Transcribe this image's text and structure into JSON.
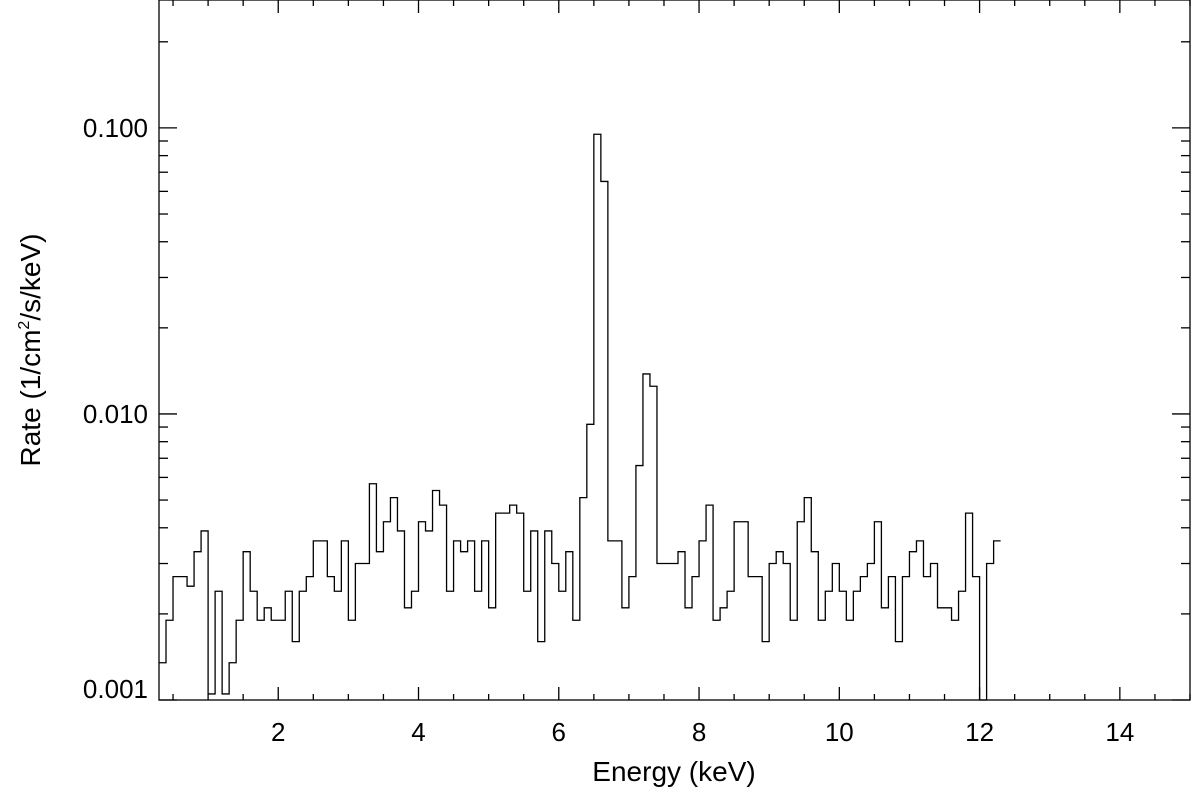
{
  "chart_data": {
    "type": "line",
    "style": "step-histogram",
    "xlabel": "Energy (keV)",
    "ylabel": {
      "prefix": "Rate (1/cm",
      "superscript": "2",
      "suffix": "/s/keV)"
    },
    "xlim": [
      0.3,
      15.0
    ],
    "ylim": [
      0.001,
      0.28
    ],
    "yscale": "log",
    "grid": false,
    "legend": "none",
    "x_ticks": [
      2,
      4,
      6,
      8,
      10,
      12,
      14
    ],
    "x_tick_labels": [
      "2",
      "4",
      "6",
      "8",
      "10",
      "12",
      "14"
    ],
    "y_ticks": [
      0.001,
      0.01,
      0.1
    ],
    "y_tick_labels": [
      "0.001",
      "0.010",
      "0.100"
    ],
    "bin_width": 0.1,
    "bin_start": 0.3,
    "series": [
      {
        "values": [
          0.00135,
          0.0019,
          0.0027,
          0.0027,
          0.0025,
          0.0033,
          0.0039,
          0.00105,
          0.0024,
          0.00105,
          0.00135,
          0.0019,
          0.0033,
          0.0024,
          0.0019,
          0.0021,
          0.0019,
          0.0019,
          0.0024,
          0.0016,
          0.0024,
          0.0027,
          0.0036,
          0.0036,
          0.0027,
          0.0024,
          0.0036,
          0.0019,
          0.003,
          0.003,
          0.0057,
          0.0033,
          0.0042,
          0.0051,
          0.0039,
          0.0021,
          0.0024,
          0.0042,
          0.0039,
          0.0054,
          0.0048,
          0.0024,
          0.0036,
          0.0033,
          0.0036,
          0.0024,
          0.0036,
          0.0021,
          0.0045,
          0.0045,
          0.0048,
          0.0045,
          0.0024,
          0.0039,
          0.0016,
          0.0039,
          0.003,
          0.0024,
          0.0033,
          0.0019,
          0.0051,
          0.0092,
          0.095,
          0.065,
          0.0036,
          0.0036,
          0.0021,
          0.0027,
          0.0066,
          0.0138,
          0.0125,
          0.003,
          0.003,
          0.003,
          0.0033,
          0.0021,
          0.0027,
          0.0036,
          0.0048,
          0.0019,
          0.0021,
          0.0024,
          0.0042,
          0.0042,
          0.0027,
          0.0027,
          0.0016,
          0.003,
          0.0033,
          0.003,
          0.0019,
          0.0042,
          0.0051,
          0.0033,
          0.0019,
          0.0024,
          0.003,
          0.0024,
          0.0019,
          0.0024,
          0.0027,
          0.003,
          0.0042,
          0.0021,
          0.0027,
          0.0016,
          0.0027,
          0.0033,
          0.0036,
          0.0027,
          0.003,
          0.0021,
          0.0021,
          0.0019,
          0.0024,
          0.0045,
          0.0027,
          0.0005,
          0.003,
          0.0036
        ]
      }
    ]
  }
}
